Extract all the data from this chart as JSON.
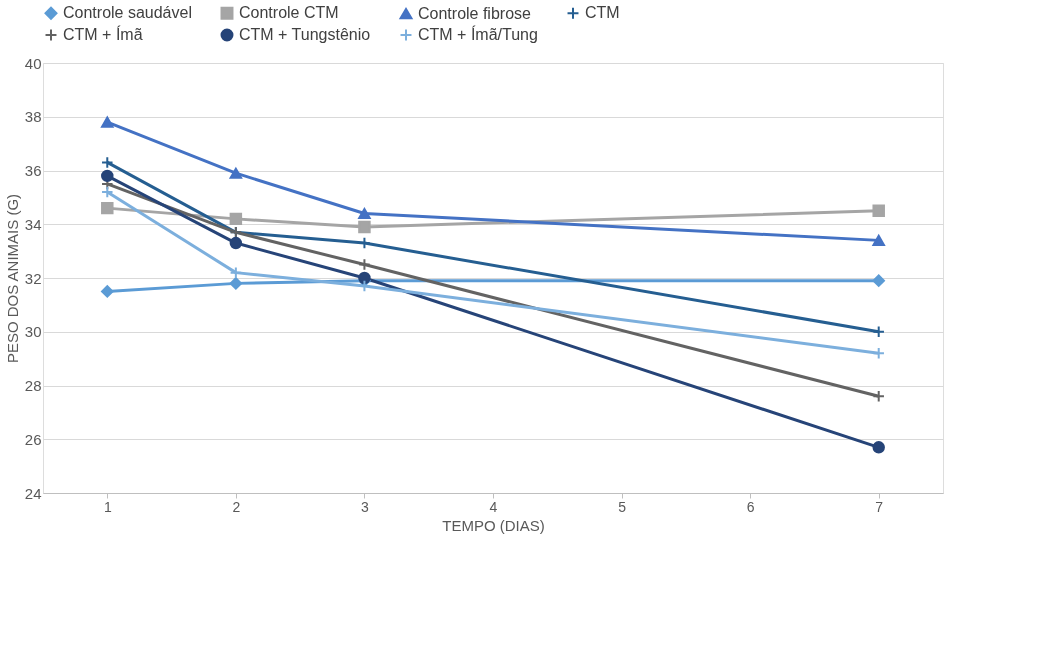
{
  "chart_data": {
    "type": "line",
    "xlabel": "TEMPO (DIAS)",
    "ylabel": "PESO DOS ANIMAIS (G)",
    "x": [
      1,
      2,
      3,
      7
    ],
    "xlim": [
      0.5,
      7.5
    ],
    "xticks": [
      1,
      2,
      3,
      4,
      5,
      6,
      7
    ],
    "ylim": [
      24,
      40
    ],
    "yticks": [
      24,
      26,
      28,
      30,
      32,
      34,
      36,
      38,
      40
    ],
    "grid": "y",
    "legend": "top",
    "series": [
      {
        "name": "Controle saudável",
        "color": "#5b9bd5",
        "marker": "diamond",
        "values": [
          31.5,
          31.8,
          31.9,
          31.9
        ]
      },
      {
        "name": "Controle CTM",
        "color": "#a5a5a5",
        "marker": "square",
        "values": [
          34.6,
          34.2,
          33.9,
          34.5
        ]
      },
      {
        "name": "Controle fibrose",
        "color": "#4472c4",
        "marker": "triangle",
        "values": [
          37.8,
          35.9,
          34.4,
          33.4
        ]
      },
      {
        "name": "CTM",
        "color": "#255e91",
        "marker": "cross",
        "values": [
          36.3,
          33.7,
          33.3,
          30.0
        ]
      },
      {
        "name": "CTM + Ímã",
        "color": "#636363",
        "marker": "cross",
        "values": [
          35.5,
          33.7,
          32.5,
          27.6
        ]
      },
      {
        "name": "CTM + Tungstênio",
        "color": "#264478",
        "marker": "circle",
        "values": [
          35.8,
          33.3,
          32.0,
          25.7
        ]
      },
      {
        "name": "CTM + Ímã/Tung",
        "color": "#7cafdd",
        "marker": "cross",
        "values": [
          35.2,
          32.2,
          31.7,
          29.2
        ]
      }
    ]
  }
}
